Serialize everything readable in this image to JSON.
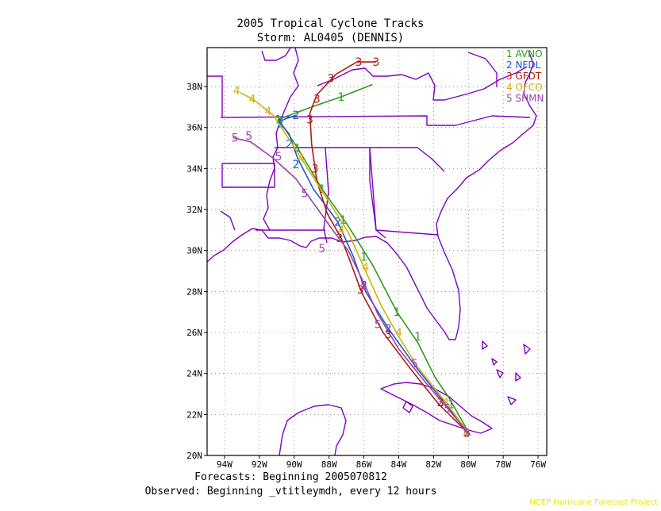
{
  "title": "2005 Tropical Cyclone Tracks",
  "subtitle": "Storm: AL0405 (DENNIS)",
  "footer_line1": "Forecasts: Beginning 2005070812",
  "footer_line2": "Observed: Beginning _vtitleymdh, every 12 hours",
  "credit": "NCEP Hurricane Forecast Project",
  "chart_data": {
    "type": "map-tracks",
    "x_ticks": [
      "94W",
      "92W",
      "90W",
      "88W",
      "86W",
      "84W",
      "82W",
      "80W",
      "78W",
      "76W"
    ],
    "y_ticks": [
      "20N",
      "22N",
      "24N",
      "26N",
      "28N",
      "30N",
      "32N",
      "34N",
      "36N",
      "38N"
    ],
    "lon_range": [
      -95,
      -75.5
    ],
    "lat_range": [
      20,
      39.9
    ],
    "colors": {
      "land": "#8000c0",
      "grid": "#808080",
      "frame": "#000000"
    },
    "series": [
      {
        "id": "1",
        "name": "AVNO",
        "color": "#2e9a1e",
        "points": [
          [
            -79.9,
            21.0
          ],
          [
            -81.1,
            22.8
          ],
          [
            -81.9,
            23.8
          ],
          [
            -82.9,
            25.5
          ],
          [
            -84.1,
            27.0
          ],
          [
            -85.5,
            29.3
          ],
          [
            -86.9,
            31.2
          ],
          [
            -88.4,
            33.0
          ],
          [
            -89.8,
            35.0
          ],
          [
            -90.9,
            36.4
          ],
          [
            -89.0,
            37.0
          ],
          [
            -87.3,
            37.5
          ],
          [
            -85.5,
            38.1
          ]
        ],
        "markers": [
          [
            -80.1,
            21.1
          ],
          [
            -81.0,
            22.5
          ],
          [
            -82.9,
            25.8
          ],
          [
            -84.1,
            27.0
          ],
          [
            -86.0,
            29.7
          ],
          [
            -87.2,
            31.5
          ],
          [
            -88.4,
            33.0
          ],
          [
            -89.8,
            35.0
          ],
          [
            -90.9,
            36.4
          ],
          [
            -87.3,
            37.5
          ]
        ]
      },
      {
        "id": "2",
        "name": "NFDL",
        "color": "#1a5ad2",
        "points": [
          [
            -79.9,
            21.0
          ],
          [
            -81.5,
            22.7
          ],
          [
            -83.0,
            24.3
          ],
          [
            -84.6,
            26.2
          ],
          [
            -85.9,
            28.0
          ],
          [
            -86.6,
            29.7
          ],
          [
            -87.5,
            31.4
          ],
          [
            -88.9,
            33.0
          ],
          [
            -89.8,
            34.5
          ],
          [
            -90.3,
            35.7
          ],
          [
            -90.9,
            36.3
          ],
          [
            -89.9,
            36.6
          ]
        ],
        "markers": [
          [
            -80.1,
            21.1
          ],
          [
            -81.6,
            22.6
          ],
          [
            -84.6,
            26.2
          ],
          [
            -86.0,
            28.3
          ],
          [
            -87.5,
            31.4
          ],
          [
            -89.9,
            34.2
          ],
          [
            -90.3,
            35.2
          ],
          [
            -90.8,
            36.2
          ],
          [
            -89.9,
            36.6
          ]
        ]
      },
      {
        "id": "3",
        "name": "GFDT",
        "color": "#b01a10",
        "points": [
          [
            -79.9,
            21.0
          ],
          [
            -81.7,
            22.5
          ],
          [
            -83.3,
            24.2
          ],
          [
            -84.9,
            26.0
          ],
          [
            -86.1,
            27.9
          ],
          [
            -86.8,
            29.5
          ],
          [
            -87.3,
            30.6
          ],
          [
            -88.1,
            31.8
          ],
          [
            -88.7,
            33.4
          ],
          [
            -89.0,
            35.2
          ],
          [
            -89.1,
            36.7
          ],
          [
            -88.7,
            37.6
          ],
          [
            -87.6,
            38.6
          ],
          [
            -86.4,
            39.2
          ],
          [
            -85.3,
            39.2
          ]
        ],
        "markers": [
          [
            -80.1,
            21.1
          ],
          [
            -81.6,
            22.6
          ],
          [
            -84.6,
            25.9
          ],
          [
            -86.2,
            28.1
          ],
          [
            -87.4,
            30.6
          ],
          [
            -88.8,
            34.0
          ],
          [
            -89.1,
            36.4
          ],
          [
            -88.7,
            37.4
          ],
          [
            -87.9,
            38.4
          ],
          [
            -86.3,
            39.2
          ],
          [
            -85.3,
            39.2
          ]
        ]
      },
      {
        "id": "4",
        "name": "OFCO",
        "color": "#d6b00c",
        "points": [
          [
            -79.9,
            21.0
          ],
          [
            -81.3,
            22.6
          ],
          [
            -82.9,
            24.3
          ],
          [
            -84.0,
            25.8
          ],
          [
            -85.0,
            27.3
          ],
          [
            -85.9,
            29.0
          ],
          [
            -86.9,
            30.9
          ],
          [
            -88.1,
            32.5
          ],
          [
            -89.3,
            34.1
          ],
          [
            -90.2,
            35.3
          ],
          [
            -91.2,
            36.6
          ],
          [
            -92.4,
            37.4
          ],
          [
            -93.1,
            37.7
          ]
        ],
        "markers": [
          [
            -80.1,
            21.1
          ],
          [
            -81.3,
            22.6
          ],
          [
            -84.0,
            26.0
          ],
          [
            -85.9,
            29.2
          ],
          [
            -87.3,
            31.0
          ],
          [
            -89.6,
            34.5
          ],
          [
            -91.5,
            36.8
          ],
          [
            -92.4,
            37.4
          ],
          [
            -93.3,
            37.8
          ]
        ]
      },
      {
        "id": "5",
        "name": "SHMN",
        "color": "#a040b0",
        "points": [
          [
            -79.9,
            21.0
          ],
          [
            -81.2,
            22.3
          ],
          [
            -82.5,
            23.6
          ],
          [
            -84.0,
            25.2
          ],
          [
            -85.2,
            26.9
          ],
          [
            -86.1,
            28.6
          ],
          [
            -86.9,
            30.0
          ],
          [
            -87.7,
            30.9
          ],
          [
            -88.8,
            32.2
          ],
          [
            -89.9,
            33.5
          ],
          [
            -91.2,
            34.5
          ],
          [
            -92.5,
            35.3
          ],
          [
            -93.5,
            35.5
          ]
        ],
        "markers": [
          [
            -80.1,
            21.1
          ],
          [
            -81.2,
            22.3
          ],
          [
            -83.1,
            24.5
          ],
          [
            -85.2,
            26.4
          ],
          [
            -86.0,
            28.3
          ],
          [
            -88.4,
            30.1
          ],
          [
            -89.4,
            32.8
          ],
          [
            -90.9,
            34.6
          ],
          [
            -92.6,
            35.6
          ],
          [
            -93.4,
            35.5
          ]
        ]
      }
    ]
  }
}
